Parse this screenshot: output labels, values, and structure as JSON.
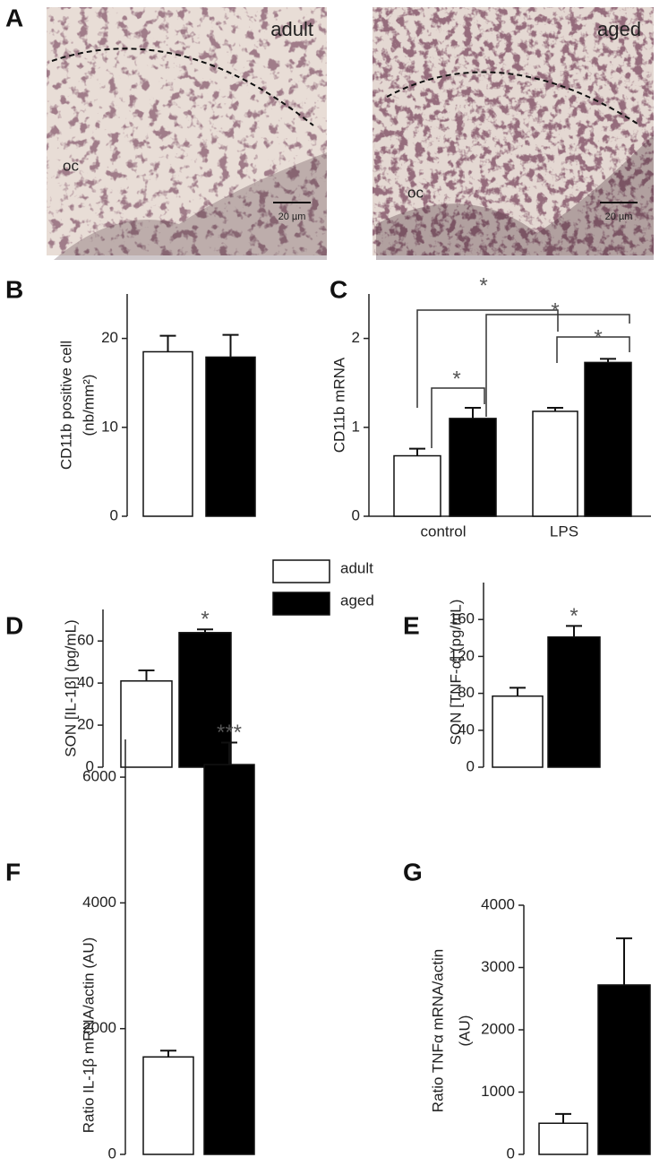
{
  "micrographs": {
    "label": "A",
    "images": [
      {
        "title": "adult",
        "region": "oc",
        "scale": "20 µm"
      },
      {
        "title": "aged",
        "region": "oc",
        "scale": "20 µm"
      }
    ]
  },
  "legend": [
    {
      "name": "adult",
      "color": "#ffffff"
    },
    {
      "name": "aged",
      "color": "#000000"
    }
  ],
  "chart_data": [
    {
      "type": "bar",
      "label": "B",
      "y_label": [
        "CD11b positive cell",
        "(nb/mm²)"
      ],
      "ylim": [
        0,
        25
      ],
      "yticks": [
        0,
        10,
        20
      ],
      "series": [
        {
          "color": "#ffffff",
          "values": [
            18.5
          ],
          "errors": [
            1.8
          ]
        },
        {
          "color": "#000000",
          "values": [
            17.9
          ],
          "errors": [
            2.5
          ]
        }
      ]
    },
    {
      "type": "bar",
      "label": "C",
      "y_label": [
        "CD11b mRNA"
      ],
      "ylim": [
        0,
        2.5
      ],
      "yticks": [
        0,
        1,
        2
      ],
      "categories": [
        "control",
        "LPS"
      ],
      "series": [
        {
          "color": "#ffffff",
          "values": [
            0.68,
            1.18
          ],
          "errors": [
            0.08,
            0.04
          ]
        },
        {
          "color": "#000000",
          "values": [
            1.1,
            1.73
          ],
          "errors": [
            0.12,
            0.04
          ]
        }
      ],
      "annotations": [
        {
          "text": "*"
        },
        {
          "text": "*"
        },
        {
          "text": "*"
        },
        {
          "text": "*"
        }
      ]
    },
    {
      "type": "bar",
      "label": "D",
      "y_label": [
        "SON [IL-1β] (pg/mL)"
      ],
      "ylim": [
        0,
        75
      ],
      "yticks": [
        0,
        20,
        40,
        60
      ],
      "series": [
        {
          "color": "#ffffff",
          "values": [
            41
          ],
          "errors": [
            5
          ]
        },
        {
          "color": "#000000",
          "values": [
            64
          ],
          "errors": [
            1.5
          ]
        }
      ],
      "annotations": [
        {
          "text": "*"
        }
      ]
    },
    {
      "type": "bar",
      "label": "E",
      "y_label": [
        "SON [TNF-α] (pg/mL)"
      ],
      "ylim": [
        0,
        200
      ],
      "yticks": [
        0,
        40,
        80,
        120,
        160
      ],
      "series": [
        {
          "color": "#ffffff",
          "values": [
            77
          ],
          "errors": [
            9
          ]
        },
        {
          "color": "#000000",
          "values": [
            141
          ],
          "errors": [
            12
          ]
        }
      ],
      "annotations": [
        {
          "text": "*"
        }
      ]
    },
    {
      "type": "bar",
      "label": "F",
      "y_label": [
        "Ratio IL-1β mRNA/actin (AU)"
      ],
      "ylim": [
        0,
        6600
      ],
      "yticks": [
        0,
        2000,
        4000,
        6000
      ],
      "series": [
        {
          "color": "#ffffff",
          "values": [
            1550
          ],
          "errors": [
            100
          ]
        },
        {
          "color": "#000000",
          "values": [
            6200
          ],
          "errors": [
            350
          ]
        }
      ],
      "annotations": [
        {
          "text": "***"
        }
      ]
    },
    {
      "type": "bar",
      "label": "G",
      "y_label": [
        "Ratio TNFα mRNA/actin",
        "(AU)"
      ],
      "ylim": [
        0,
        4000
      ],
      "yticks": [
        0,
        1000,
        2000,
        3000,
        4000
      ],
      "series": [
        {
          "color": "#ffffff",
          "values": [
            500
          ],
          "errors": [
            150
          ]
        },
        {
          "color": "#000000",
          "values": [
            2720
          ],
          "errors": [
            750
          ]
        }
      ]
    }
  ]
}
